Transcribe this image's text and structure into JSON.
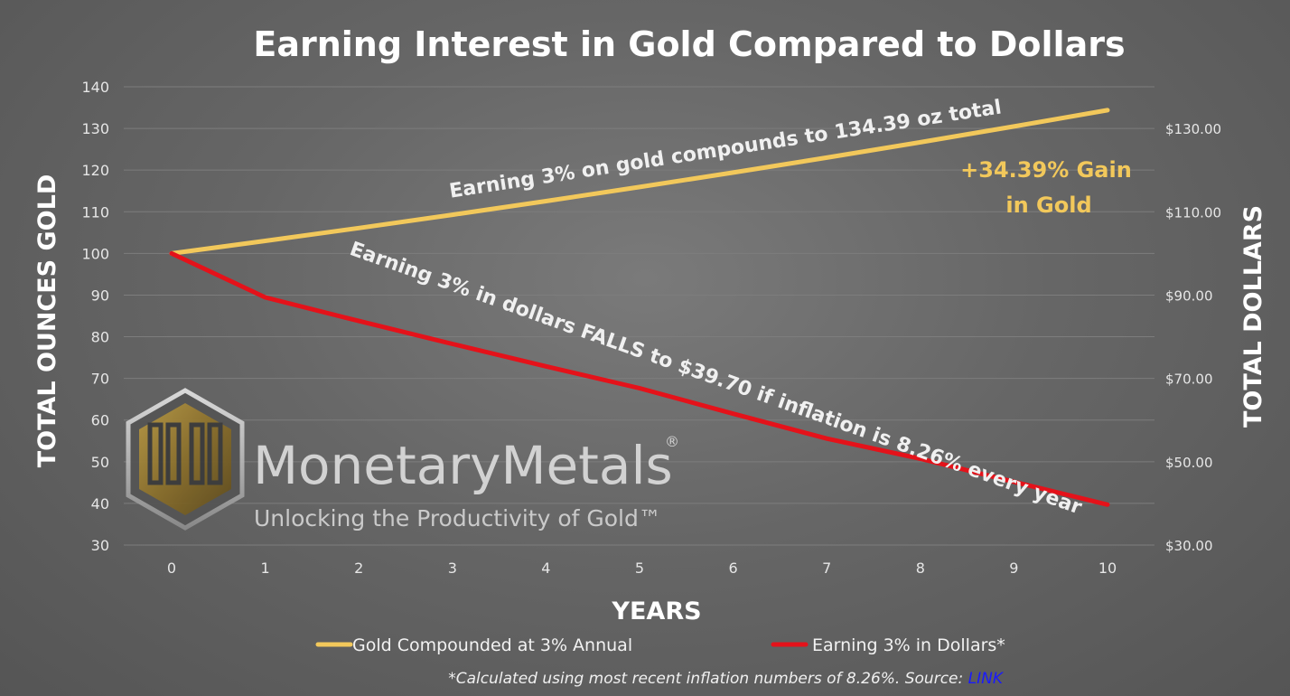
{
  "chart_data": {
    "type": "line",
    "title": "Earning Interest in Gold Compared to Dollars",
    "xlabel": "YEARS",
    "ylabel": "TOTAL OUNCES GOLD",
    "y2label": "TOTAL DOLLARS",
    "x": [
      0,
      1,
      2,
      3,
      4,
      5,
      6,
      7,
      8,
      9,
      10
    ],
    "ylim": [
      30,
      140
    ],
    "yticks": [
      "140",
      "130",
      "120",
      "110",
      "100",
      "90",
      "80",
      "70",
      "60",
      "50",
      "40",
      "30"
    ],
    "y2lim": [
      30,
      140
    ],
    "y2ticks": [
      "$130.00",
      "$110.00",
      "$90.00",
      "$70.00",
      "$50.00",
      "$30.00"
    ],
    "grid": true,
    "legend": "bottom",
    "series": [
      {
        "name": "Gold Compounded at 3% Annual",
        "color": "#f2c85b",
        "values": [
          100,
          103,
          106.09,
          109.27,
          112.55,
          115.93,
          119.41,
          122.99,
          126.68,
          130.48,
          134.39
        ]
      },
      {
        "name": "Earning 3% in Dollars*",
        "color": "#e4121a",
        "values": [
          100,
          89.44,
          83.79,
          78.27,
          72.89,
          67.64,
          61.53,
          55.55,
          50.71,
          45.16,
          39.7
        ]
      }
    ],
    "annotations": {
      "gold_line": "Earning 3% on gold compounds to 134.39 oz total",
      "dollar_line": "Earning 3% in dollars FALLS to $39.70 if inflation is 8.26% every year",
      "gain_line1": "+34.39% Gain",
      "gain_line2": "in Gold"
    },
    "footnote": "*Calculated using most recent inflation numbers of 8.26%. Source: ",
    "footnote_link": "LINK"
  },
  "logo": {
    "word_part1": "Monetary",
    "word_part2": "Metals",
    "registered": "®",
    "tagline": "Unlocking the Productivity of Gold™"
  }
}
